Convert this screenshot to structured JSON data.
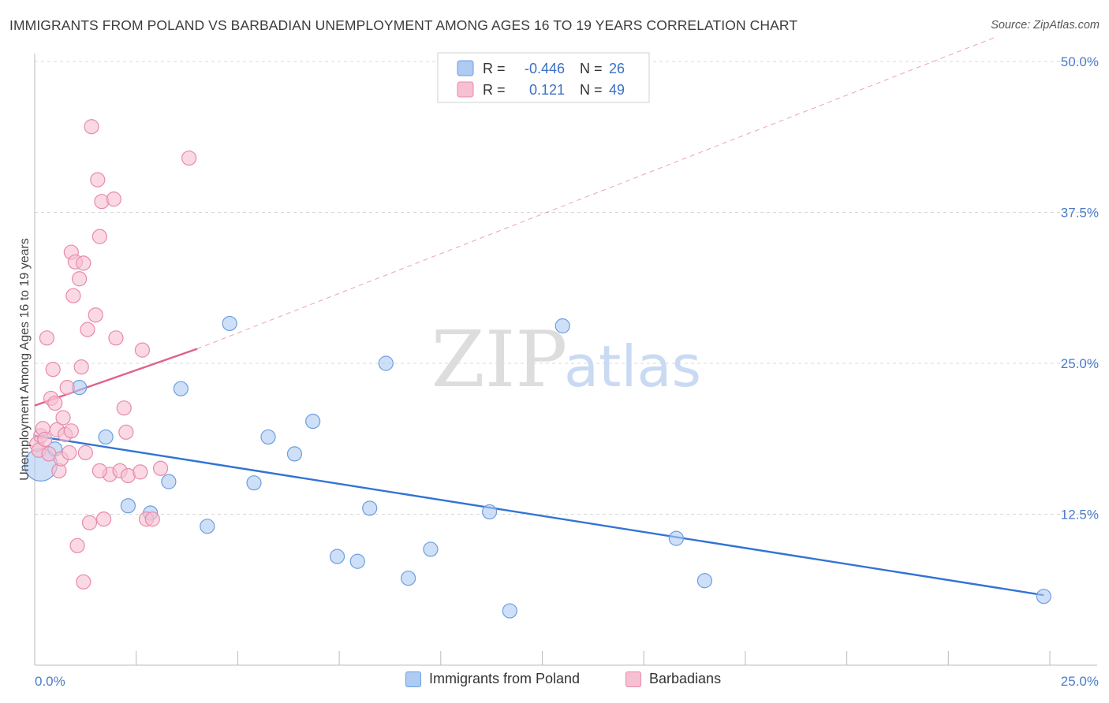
{
  "header": {
    "title": "IMMIGRANTS FROM POLAND VS BARBADIAN UNEMPLOYMENT AMONG AGES 16 TO 19 YEARS CORRELATION CHART",
    "source": "Source: ZipAtlas.com"
  },
  "colors": {
    "blue_fill": "#aecbf2",
    "blue_stroke": "#6d9de0",
    "blue_line": "#3373d4",
    "pink_fill": "#f7c0d2",
    "pink_stroke": "#e88aaa",
    "pink_line": "#e0608c",
    "tick_label": "#4a7cc9",
    "grid": "#d8d8d8"
  },
  "legend_box": {
    "rows": [
      {
        "r_label": "R =",
        "r_value": "-0.446",
        "n_label": "N =",
        "n_value": "26",
        "series": "blue"
      },
      {
        "r_label": "R =",
        "r_value": "0.121",
        "n_label": "N =",
        "n_value": "49",
        "series": "pink"
      }
    ]
  },
  "watermark": {
    "zip": "ZIP",
    "atlas": "atlas"
  },
  "chart_data": {
    "type": "scatter",
    "title": "IMMIGRANTS FROM POLAND VS BARBADIAN UNEMPLOYMENT AMONG AGES 16 TO 19 YEARS CORRELATION CHART",
    "xlabel": "",
    "ylabel": "Unemployment Among Ages 16 to 19 years",
    "xlim": [
      0,
      25
    ],
    "ylim": [
      0,
      52
    ],
    "x_tick_labels": [
      {
        "value": 0,
        "label": "0.0%"
      },
      {
        "value": 25,
        "label": "25.0%"
      }
    ],
    "y_tick_labels": [
      {
        "value": 12.5,
        "label": "12.5%"
      },
      {
        "value": 25,
        "label": "25.0%"
      },
      {
        "value": 37.5,
        "label": "37.5%"
      },
      {
        "value": 50,
        "label": "50.0%"
      }
    ],
    "series": [
      {
        "name": "Immigrants from Poland",
        "color": "blue",
        "points": [
          [
            0.15,
            16.6,
            2.3
          ],
          [
            0.5,
            17.9,
            1
          ],
          [
            1.1,
            23.0,
            1
          ],
          [
            1.75,
            18.9,
            1
          ],
          [
            2.3,
            13.2,
            1
          ],
          [
            2.85,
            12.6,
            1
          ],
          [
            3.3,
            15.2,
            1
          ],
          [
            3.6,
            22.9,
            1
          ],
          [
            4.25,
            11.5,
            1
          ],
          [
            4.8,
            28.3,
            1
          ],
          [
            5.4,
            15.1,
            1
          ],
          [
            5.75,
            18.9,
            1
          ],
          [
            6.4,
            17.5,
            1
          ],
          [
            6.85,
            20.2,
            1
          ],
          [
            7.45,
            9.0,
            1
          ],
          [
            7.95,
            8.6,
            1
          ],
          [
            8.25,
            13.0,
            1
          ],
          [
            8.65,
            25.0,
            1
          ],
          [
            9.2,
            7.2,
            1
          ],
          [
            9.75,
            9.6,
            1
          ],
          [
            11.2,
            12.7,
            1
          ],
          [
            11.7,
            4.5,
            1
          ],
          [
            13.0,
            28.1,
            1
          ],
          [
            15.8,
            10.5,
            1
          ],
          [
            16.5,
            7.0,
            1
          ],
          [
            24.85,
            5.7,
            1
          ]
        ],
        "trend": {
          "x0": 0,
          "y0": 19.0,
          "x1": 24.85,
          "y1": 5.8,
          "dash_to": null
        }
      },
      {
        "name": "Barbadians",
        "color": "pink",
        "points": [
          [
            0.05,
            18.3,
            1
          ],
          [
            0.1,
            17.8,
            1
          ],
          [
            0.15,
            19.0,
            1
          ],
          [
            0.2,
            19.6,
            1
          ],
          [
            0.25,
            18.7,
            1
          ],
          [
            0.3,
            27.1,
            1
          ],
          [
            0.35,
            17.5,
            1
          ],
          [
            0.4,
            22.1,
            1
          ],
          [
            0.45,
            24.5,
            1
          ],
          [
            0.5,
            21.7,
            1
          ],
          [
            0.55,
            19.5,
            1
          ],
          [
            0.6,
            16.1,
            1
          ],
          [
            0.65,
            17.1,
            1
          ],
          [
            0.7,
            20.5,
            1
          ],
          [
            0.75,
            19.1,
            1
          ],
          [
            0.8,
            23.0,
            1
          ],
          [
            0.85,
            17.6,
            1
          ],
          [
            0.9,
            34.2,
            1
          ],
          [
            0.95,
            30.6,
            1
          ],
          [
            1.0,
            33.4,
            1
          ],
          [
            1.05,
            9.9,
            1
          ],
          [
            1.1,
            32.0,
            1
          ],
          [
            1.15,
            24.7,
            1
          ],
          [
            1.2,
            6.9,
            1
          ],
          [
            1.25,
            17.6,
            1
          ],
          [
            1.3,
            27.8,
            1
          ],
          [
            1.35,
            11.8,
            1
          ],
          [
            1.2,
            33.3,
            1
          ],
          [
            1.5,
            29.0,
            1
          ],
          [
            1.6,
            35.5,
            1
          ],
          [
            1.65,
            38.4,
            1
          ],
          [
            1.7,
            12.1,
            1
          ],
          [
            1.4,
            44.6,
            1
          ],
          [
            1.55,
            40.2,
            1
          ],
          [
            1.85,
            15.8,
            1
          ],
          [
            1.95,
            38.6,
            1
          ],
          [
            2.0,
            27.1,
            1
          ],
          [
            2.1,
            16.1,
            1
          ],
          [
            2.2,
            21.3,
            1
          ],
          [
            2.25,
            19.3,
            1
          ],
          [
            2.3,
            15.7,
            1
          ],
          [
            2.6,
            16.0,
            1
          ],
          [
            2.65,
            26.1,
            1
          ],
          [
            2.75,
            12.1,
            1
          ],
          [
            2.9,
            12.1,
            1
          ],
          [
            3.1,
            16.3,
            1
          ],
          [
            3.8,
            42.0,
            1
          ],
          [
            1.6,
            16.1,
            1
          ],
          [
            0.9,
            19.4,
            1
          ]
        ],
        "trend": {
          "x0": 0,
          "y0": 21.5,
          "x1": 4.0,
          "y1": 26.2,
          "dash_to": [
            23.65,
            52.0
          ]
        }
      }
    ]
  },
  "bottom_legend": [
    {
      "label": "Immigrants from Poland",
      "color": "blue"
    },
    {
      "label": "Barbadians",
      "color": "pink"
    }
  ]
}
